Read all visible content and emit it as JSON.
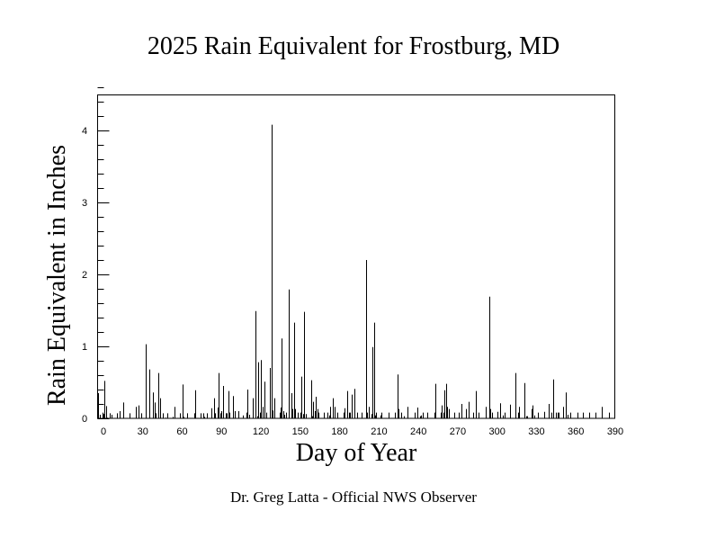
{
  "title": "2025 Rain Equivalent for Frostburg, MD",
  "xlabel": "Day of Year",
  "ylabel": "Rain Equivalent in Inches",
  "credit": "Dr. Greg Latta - Official NWS Observer",
  "chart_data": {
    "type": "bar",
    "title": "2025 Rain Equivalent for Frostburg, MD",
    "xlabel": "Day of Year",
    "ylabel": "Rain Equivalent in Inches",
    "xlim": [
      -5,
      390
    ],
    "ylim": [
      0,
      4.5
    ],
    "x_ticks": [
      0,
      30,
      60,
      90,
      120,
      150,
      180,
      210,
      240,
      270,
      300,
      330,
      360,
      390
    ],
    "y_ticks": [
      0,
      1,
      2,
      3,
      4
    ],
    "y_minor_step": 0.2,
    "grid": false,
    "legend": null,
    "bar_color": "#000000",
    "x": [
      -4,
      -3,
      -1,
      0,
      1,
      2,
      3,
      5,
      6,
      10,
      12,
      15,
      20,
      25,
      27,
      29,
      32,
      35,
      38,
      39,
      40,
      42,
      43,
      45,
      47,
      49,
      53,
      54,
      58,
      60,
      61,
      64,
      69,
      70,
      74,
      76,
      77,
      79,
      82,
      84,
      85,
      87,
      88,
      89,
      90,
      91,
      93,
      94,
      95,
      96,
      99,
      100,
      103,
      106,
      109,
      110,
      111,
      114,
      116,
      117,
      118,
      119,
      120,
      121,
      123,
      124,
      127,
      128,
      129,
      130,
      134,
      135,
      136,
      137,
      138,
      139,
      141,
      143,
      144,
      145,
      146,
      148,
      150,
      151,
      152,
      153,
      154,
      158,
      159,
      160,
      161,
      162,
      163,
      164,
      168,
      171,
      172,
      173,
      175,
      176,
      178,
      183,
      184,
      186,
      187,
      188,
      189,
      191,
      193,
      197,
      200,
      201,
      202,
      204,
      205,
      206,
      207,
      208,
      211,
      212,
      217,
      222,
      224,
      225,
      227,
      229,
      232,
      237,
      239,
      241,
      242,
      243,
      247,
      252,
      253,
      257,
      258,
      259,
      260,
      261,
      262,
      263,
      267,
      271,
      273,
      276,
      278,
      282,
      284,
      286,
      291,
      294,
      295,
      296,
      300,
      302,
      304,
      306,
      310,
      314,
      316,
      317,
      321,
      322,
      323,
      326,
      327,
      328,
      331,
      336,
      339,
      341,
      343,
      345,
      346,
      347,
      350,
      352,
      354,
      356,
      361,
      365,
      370,
      375,
      380,
      385
    ],
    "values": [
      0.35,
      0.05,
      0.08,
      0.06,
      0.52,
      0.17,
      0.01,
      0.07,
      0.05,
      0.07,
      0.1,
      0.22,
      0.07,
      0.16,
      0.18,
      0.07,
      1.03,
      0.68,
      0.36,
      0.22,
      0.07,
      0.63,
      0.28,
      0.07,
      0.01,
      0.07,
      0.02,
      0.16,
      0.07,
      0.47,
      0.02,
      0.07,
      0.07,
      0.39,
      0.07,
      0.07,
      0.02,
      0.07,
      0.14,
      0.28,
      0.07,
      0.15,
      0.63,
      0.07,
      0.1,
      0.45,
      0.07,
      0.07,
      0.38,
      0.08,
      0.31,
      0.1,
      0.1,
      0.04,
      0.08,
      0.4,
      0.05,
      0.28,
      1.49,
      0.03,
      0.78,
      0.08,
      0.81,
      0.16,
      0.51,
      0.08,
      0.7,
      4.08,
      0.11,
      0.28,
      0.08,
      0.15,
      1.11,
      0.1,
      0.05,
      0.08,
      1.79,
      0.35,
      0.13,
      1.33,
      0.13,
      0.08,
      0.08,
      0.58,
      0.06,
      1.48,
      0.06,
      0.53,
      0.03,
      0.23,
      0.1,
      0.3,
      0.13,
      0.08,
      0.08,
      0.08,
      0.04,
      0.16,
      0.28,
      0.16,
      0.08,
      0.08,
      0.14,
      0.38,
      0.08,
      0.08,
      0.33,
      0.41,
      0.08,
      0.08,
      2.2,
      0.08,
      0.16,
      0.06,
      0.99,
      1.33,
      0.04,
      0.08,
      0.04,
      0.08,
      0.08,
      0.08,
      0.61,
      0.13,
      0.08,
      0.03,
      0.16,
      0.08,
      0.15,
      0.03,
      0.04,
      0.08,
      0.08,
      0.08,
      0.48,
      0.08,
      0.18,
      0.08,
      0.39,
      0.48,
      0.16,
      0.13,
      0.08,
      0.08,
      0.2,
      0.13,
      0.23,
      0.08,
      0.38,
      0.08,
      0.16,
      1.69,
      0.13,
      0.08,
      0.09,
      0.21,
      0.04,
      0.08,
      0.19,
      0.63,
      0.08,
      0.16,
      0.49,
      0.03,
      0.03,
      0.13,
      0.18,
      0.04,
      0.08,
      0.09,
      0.2,
      0.08,
      0.54,
      0.08,
      0.08,
      0.08,
      0.16,
      0.36,
      0.05,
      0.08,
      0.08,
      0.08,
      0.08,
      0.08,
      0.16,
      0.08
    ]
  }
}
